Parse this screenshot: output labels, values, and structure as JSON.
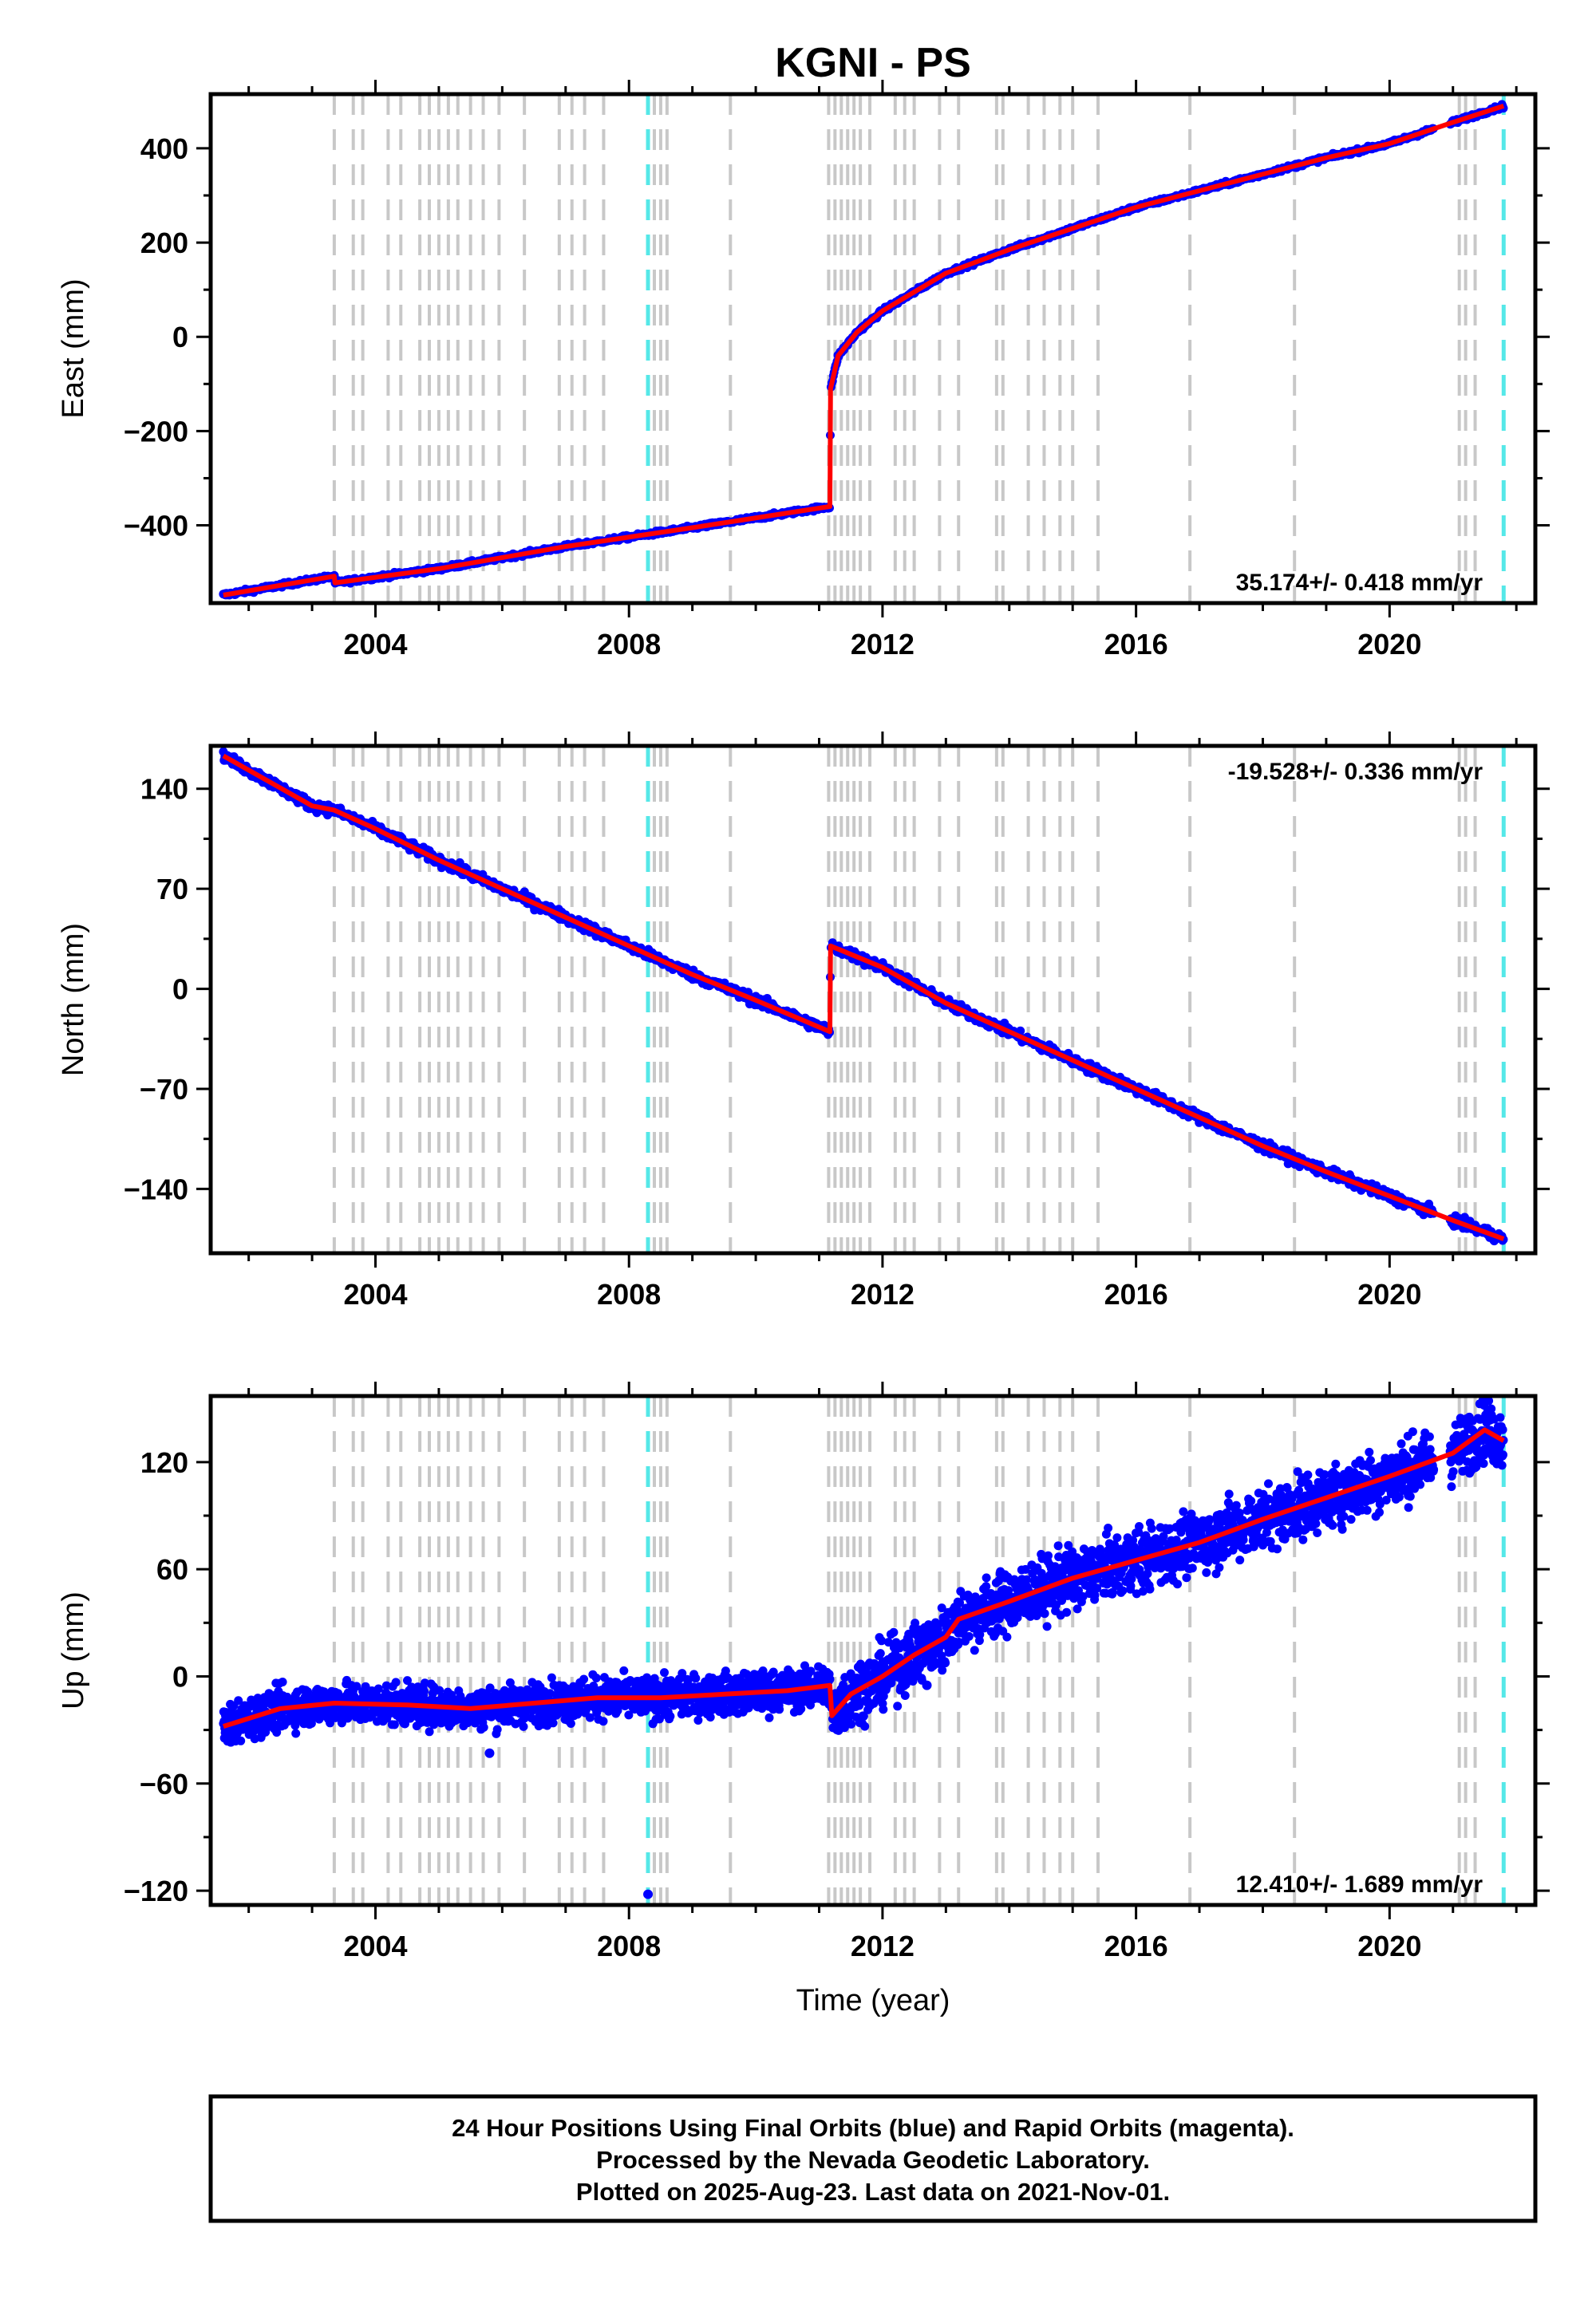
{
  "chart_data": {
    "type": "scatter",
    "title": "KGNI - PS",
    "xlabel": "Time (year)",
    "xlim": [
      2001.4,
      2022.3
    ],
    "x_ticks": [
      "2004",
      "2008",
      "2012",
      "2016",
      "2020"
    ],
    "colors": {
      "final_orbits": "#0000ff",
      "rapid_orbits": "#ff00ff",
      "model": "#ff0000",
      "step_gray": "#c8c8c8",
      "step_cyan": "#55e8e8"
    },
    "step_lines_gray": [
      2003.35,
      2003.65,
      2003.8,
      2004.2,
      2004.4,
      2004.7,
      2004.85,
      2005.0,
      2005.15,
      2005.3,
      2005.5,
      2005.7,
      2005.95,
      2006.35,
      2006.9,
      2007.1,
      2007.3,
      2007.6,
      2008.4,
      2008.5,
      2008.6,
      2009.6,
      2011.15,
      2011.25,
      2011.35,
      2011.45,
      2011.55,
      2011.65,
      2011.8,
      2012.2,
      2012.35,
      2012.5,
      2012.9,
      2013.2,
      2013.8,
      2013.9,
      2014.3,
      2014.55,
      2014.8,
      2015.0,
      2015.4,
      2016.85,
      2018.5,
      2021.1,
      2021.2,
      2021.35
    ],
    "step_lines_cyan": [
      2008.3,
      2021.8
    ],
    "panels": [
      {
        "id": "east",
        "ylabel": "East (mm)",
        "ylim": [
          -565,
          515
        ],
        "y_ticks": [
          400,
          200,
          0,
          -200,
          -400
        ],
        "y_tick_labels": [
          "400",
          "200",
          "0",
          "−200",
          "−400"
        ],
        "rate_label": "35.174+/- 0.418 mm/yr",
        "rate_position": "bottom-right",
        "noise_mm": 3,
        "model_points": [
          [
            2001.6,
            -548
          ],
          [
            2003.35,
            -508
          ],
          [
            2003.36,
            -522
          ],
          [
            2005.0,
            -492
          ],
          [
            2007.0,
            -445
          ],
          [
            2009.0,
            -405
          ],
          [
            2011.17,
            -360
          ],
          [
            2011.18,
            -110
          ],
          [
            2011.3,
            -40
          ],
          [
            2011.6,
            10
          ],
          [
            2012.0,
            55
          ],
          [
            2013.0,
            135
          ],
          [
            2014.0,
            185
          ],
          [
            2015.0,
            230
          ],
          [
            2016.0,
            275
          ],
          [
            2017.0,
            310
          ],
          [
            2018.0,
            345
          ],
          [
            2019.0,
            380
          ],
          [
            2020.0,
            410
          ],
          [
            2021.0,
            455
          ],
          [
            2021.8,
            490
          ]
        ]
      },
      {
        "id": "north",
        "ylabel": "North (mm)",
        "ylim": [
          -185,
          170
        ],
        "y_ticks": [
          140,
          70,
          0,
          -70,
          -140
        ],
        "y_tick_labels": [
          "140",
          "70",
          "0",
          "−70",
          "−140"
        ],
        "rate_label": "-19.528+/- 0.336 mm/yr",
        "rate_position": "top-right",
        "noise_mm": 2.5,
        "model_points": [
          [
            2001.6,
            163
          ],
          [
            2003.0,
            128
          ],
          [
            2003.35,
            125
          ],
          [
            2004.0,
            112
          ],
          [
            2005.0,
            90
          ],
          [
            2006.0,
            70
          ],
          [
            2007.0,
            50
          ],
          [
            2008.0,
            30
          ],
          [
            2009.0,
            10
          ],
          [
            2010.0,
            -8
          ],
          [
            2011.17,
            -30
          ],
          [
            2011.18,
            30
          ],
          [
            2012.0,
            15
          ],
          [
            2013.0,
            -10
          ],
          [
            2014.0,
            -30
          ],
          [
            2015.0,
            -50
          ],
          [
            2016.0,
            -70
          ],
          [
            2017.0,
            -90
          ],
          [
            2018.0,
            -110
          ],
          [
            2019.0,
            -128
          ],
          [
            2020.0,
            -145
          ],
          [
            2021.0,
            -162
          ],
          [
            2021.8,
            -175
          ]
        ]
      },
      {
        "id": "up",
        "ylabel": "Up (mm)",
        "ylim": [
          -128,
          157
        ],
        "y_ticks": [
          120,
          60,
          0,
          -60,
          -120
        ],
        "y_tick_labels": [
          "120",
          "60",
          "0",
          "−60",
          "−120"
        ],
        "rate_label": "12.410+/- 1.689 mm/yr",
        "rate_position": "bottom-right",
        "noise_mm": 8,
        "outliers": [
          [
            2008.3,
            -122
          ],
          [
            2005.8,
            -43
          ],
          [
            2012.7,
            -5
          ]
        ],
        "model_points": [
          [
            2001.6,
            -28
          ],
          [
            2002.5,
            -18
          ],
          [
            2003.35,
            -15
          ],
          [
            2004.5,
            -16
          ],
          [
            2005.5,
            -18
          ],
          [
            2006.5,
            -15
          ],
          [
            2007.5,
            -12
          ],
          [
            2008.5,
            -12
          ],
          [
            2009.5,
            -10
          ],
          [
            2010.5,
            -8
          ],
          [
            2011.17,
            -5
          ],
          [
            2011.2,
            -22
          ],
          [
            2011.5,
            -10
          ],
          [
            2012.0,
            0
          ],
          [
            2012.5,
            12
          ],
          [
            2013.0,
            22
          ],
          [
            2013.2,
            32
          ],
          [
            2014.0,
            42
          ],
          [
            2015.0,
            55
          ],
          [
            2016.0,
            65
          ],
          [
            2017.0,
            75
          ],
          [
            2018.0,
            88
          ],
          [
            2019.0,
            100
          ],
          [
            2020.0,
            112
          ],
          [
            2021.0,
            125
          ],
          [
            2021.5,
            138
          ],
          [
            2021.8,
            132
          ]
        ]
      }
    ]
  },
  "footer": {
    "line1": "24 Hour Positions Using Final Orbits (blue) and Rapid Orbits (magenta).",
    "line2": "Processed by the Nevada Geodetic Laboratory.",
    "line3": "Plotted on 2025-Aug-23. Last data on 2021-Nov-01."
  }
}
